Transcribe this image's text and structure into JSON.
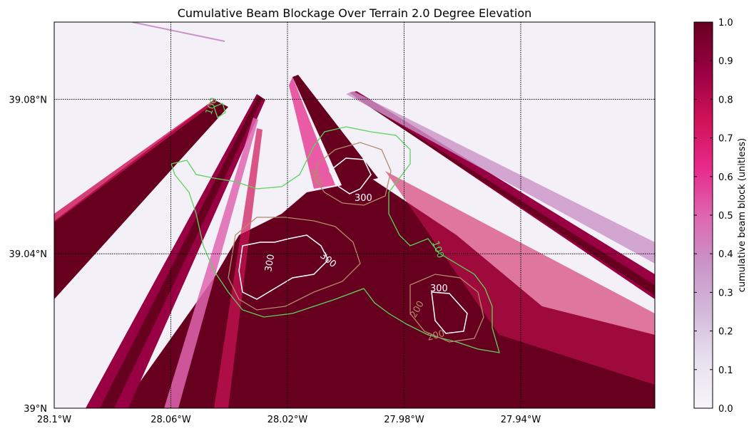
{
  "chart_data": {
    "type": "heatmap",
    "title": "Cumulative Beam Blockage Over Terrain 2.0 Degree Elevation",
    "x": {
      "ticks": [
        -28.1,
        -28.06,
        -28.02,
        -27.98,
        -27.94
      ],
      "tick_labels": [
        "28.1°W",
        "28.06°W",
        "28.02°W",
        "27.98°W",
        "27.94°W"
      ],
      "lim": [
        -28.1,
        -27.894
      ]
    },
    "y": {
      "ticks": [
        39.0,
        39.04,
        39.08
      ],
      "tick_labels": [
        "39°N",
        "39.04°N",
        "39.08°N"
      ],
      "lim": [
        39.0,
        39.1
      ]
    },
    "grid": true,
    "colorbar": {
      "label": "cumulative beam block (unitless)",
      "range": [
        0.0,
        1.0
      ],
      "ticks": [
        0.0,
        0.1,
        0.2,
        0.3,
        0.4,
        0.5,
        0.6,
        0.7,
        0.8,
        0.9,
        1.0
      ],
      "tick_labels": [
        "0.0",
        "0.1",
        "0.2",
        "0.3",
        "0.4",
        "0.5",
        "0.6",
        "0.7",
        "0.8",
        "0.9",
        "1.0"
      ],
      "colormap": "PuRd",
      "stops": [
        "#f7f4f9",
        "#e7e1ef",
        "#d4b9da",
        "#c994c7",
        "#df65b0",
        "#e7298a",
        "#ce1256",
        "#980043",
        "#67001f"
      ]
    },
    "terrain_contours": {
      "levels": [
        100,
        200,
        300
      ],
      "labels": [
        "100",
        "200",
        "300"
      ],
      "colors": [
        "#5cd35c",
        "#b38a6a",
        "#ffffff"
      ]
    },
    "beams": [
      {
        "from": [
          -28.1,
          39.017
        ],
        "to": [
          -28.045,
          39.078
        ],
        "width_km": 0.011,
        "value": 1.0
      },
      {
        "from": [
          -28.09,
          39.0
        ],
        "to": [
          -28.032,
          39.078
        ],
        "width_km": 0.006,
        "value": 1.0
      },
      {
        "from": [
          -28.08,
          39.0
        ],
        "to": [
          -28.03,
          39.075
        ],
        "width_km": 0.004,
        "value": 0.6
      },
      {
        "from": [
          -28.05,
          39.0
        ],
        "to": [
          -28.03,
          39.077
        ],
        "width_km": 0.003,
        "value": 0.9
      },
      {
        "from": [
          -28.019,
          39.085
        ],
        "to": [
          -27.996,
          39.057
        ],
        "width_km": 0.006,
        "value": 1.0
      },
      {
        "from": [
          -28.0,
          39.081
        ],
        "to": [
          -27.894,
          39.027
        ],
        "width_km": 0.006,
        "value": 0.85
      },
      {
        "from": [
          -27.996,
          39.081
        ],
        "to": [
          -27.894,
          39.038
        ],
        "width_km": 0.006,
        "value": 0.3
      }
    ]
  }
}
